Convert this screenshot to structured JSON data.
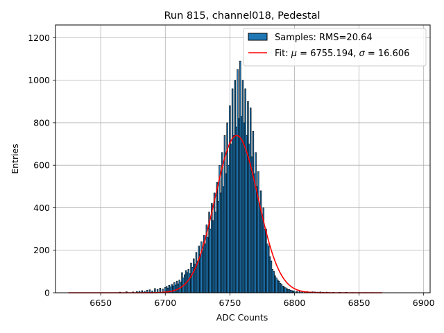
{
  "chart_data": {
    "type": "bar",
    "title": "Run 815, channel018, Pedestal",
    "xlabel": "ADC Counts",
    "ylabel": "Entries",
    "xlim": [
      6615,
      6905
    ],
    "ylim": [
      0,
      1260
    ],
    "xticks": [
      6650,
      6700,
      6750,
      6800,
      6850,
      6900
    ],
    "yticks": [
      0,
      200,
      400,
      600,
      800,
      1000,
      1200
    ],
    "grid": true,
    "legend_placement": "top-right",
    "colors": {
      "bars": "#1f77b4",
      "bar_edge": "#000000",
      "fit": "#ff0000",
      "grid": "#b0b0b0"
    },
    "series": [
      {
        "name": "Samples: RMS=20.64",
        "kind": "histogram",
        "bin_width": 1,
        "x": [
          6665,
          6670,
          6675,
          6678,
          6680,
          6682,
          6684,
          6686,
          6688,
          6690,
          6692,
          6694,
          6696,
          6698,
          6700,
          6701,
          6702,
          6703,
          6704,
          6705,
          6706,
          6707,
          6708,
          6709,
          6710,
          6711,
          6712,
          6713,
          6714,
          6715,
          6716,
          6717,
          6718,
          6719,
          6720,
          6721,
          6722,
          6723,
          6724,
          6725,
          6726,
          6727,
          6728,
          6729,
          6730,
          6731,
          6732,
          6733,
          6734,
          6735,
          6736,
          6737,
          6738,
          6739,
          6740,
          6741,
          6742,
          6743,
          6744,
          6745,
          6746,
          6747,
          6748,
          6749,
          6750,
          6751,
          6752,
          6753,
          6754,
          6755,
          6756,
          6757,
          6758,
          6759,
          6760,
          6761,
          6762,
          6763,
          6764,
          6765,
          6766,
          6767,
          6768,
          6769,
          6770,
          6771,
          6772,
          6773,
          6774,
          6775,
          6776,
          6777,
          6778,
          6779,
          6780,
          6781,
          6782,
          6783,
          6784,
          6785,
          6786,
          6787,
          6788,
          6789,
          6790,
          6791,
          6792,
          6793,
          6794,
          6795,
          6796,
          6797,
          6798,
          6799,
          6800,
          6802,
          6804,
          6806,
          6808,
          6810,
          6812,
          6814,
          6816,
          6818,
          6820,
          6822,
          6825,
          6830,
          6835,
          6840,
          6845,
          6850,
          6855,
          6860
        ],
        "values": [
          3,
          5,
          4,
          6,
          8,
          10,
          7,
          12,
          14,
          9,
          20,
          16,
          22,
          18,
          25,
          30,
          22,
          35,
          28,
          40,
          32,
          48,
          36,
          55,
          42,
          60,
          50,
          95,
          70,
          85,
          105,
          95,
          110,
          90,
          140,
          120,
          160,
          135,
          190,
          150,
          220,
          180,
          240,
          200,
          270,
          230,
          320,
          260,
          380,
          300,
          420,
          340,
          470,
          380,
          520,
          430,
          600,
          470,
          660,
          500,
          740,
          560,
          800,
          600,
          880,
          700,
          960,
          740,
          1000,
          780,
          1050,
          820,
          1090,
          830,
          1000,
          800,
          960,
          740,
          900,
          700,
          870,
          640,
          760,
          560,
          660,
          500,
          570,
          420,
          480,
          360,
          400,
          300,
          300,
          230,
          220,
          170,
          150,
          110,
          100,
          80,
          70,
          60,
          55,
          45,
          40,
          32,
          28,
          24,
          20,
          16,
          15,
          12,
          10,
          9,
          8,
          7,
          6,
          7,
          5,
          6,
          4,
          5,
          4,
          3,
          4,
          3,
          3,
          2,
          2,
          2,
          1,
          1,
          1,
          1
        ]
      },
      {
        "name": "Fit: μ = 6755.194, σ = 16.606",
        "kind": "gaussian",
        "mu": 6755.194,
        "sigma": 16.606,
        "amplitude": 740,
        "x_range": [
          6625,
          6868
        ]
      }
    ],
    "legend": {
      "samples_label": "Samples: RMS=20.64",
      "fit_prefix": "Fit: ",
      "mu_symbol": "μ",
      "mu_text": " = 6755.194, ",
      "sigma_symbol": "σ",
      "sigma_text": " = 16.606"
    }
  }
}
